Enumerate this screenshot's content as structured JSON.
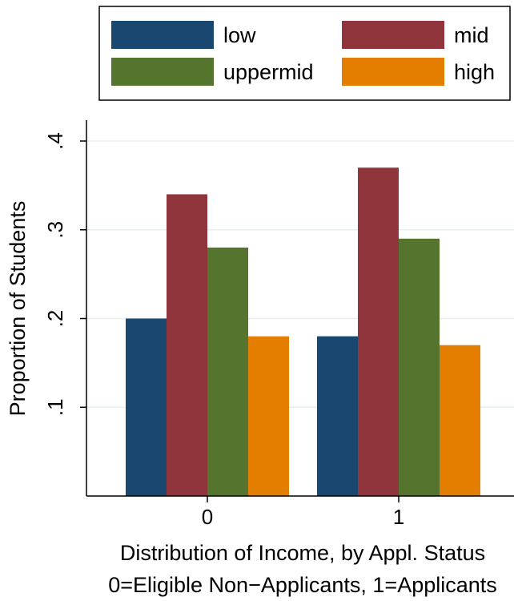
{
  "chart_data": {
    "type": "bar",
    "categories": [
      "0",
      "1"
    ],
    "series": [
      {
        "name": "low",
        "color": "#1a476f",
        "values": [
          0.2,
          0.18
        ]
      },
      {
        "name": "mid",
        "color": "#90353b",
        "values": [
          0.34,
          0.37
        ]
      },
      {
        "name": "uppermid",
        "color": "#55752f",
        "values": [
          0.28,
          0.29
        ]
      },
      {
        "name": "high",
        "color": "#e37e00",
        "values": [
          0.18,
          0.17
        ]
      }
    ],
    "ylabel": "Proportion of Students",
    "xlabel": "Distribution of Income, by Appl. Status",
    "xsubtitle": "0=Eligible Non−Applicants, 1=Applicants",
    "ylim": [
      0.0,
      0.4
    ],
    "yticks": [
      0.1,
      0.2,
      0.3,
      0.4
    ],
    "ytick_labels": [
      ".1",
      ".2",
      ".3",
      ".4"
    ],
    "grid": true,
    "legend_position": "top"
  }
}
